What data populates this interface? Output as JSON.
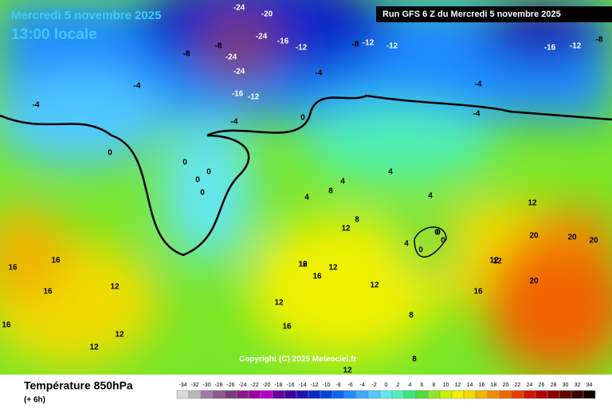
{
  "header": {
    "date": "Mercredi 5 novembre 2025",
    "time": "13:00 locale",
    "run": "Run GFS 6 Z du Mercredi 5 novembre 2025"
  },
  "footer": {
    "title": "Température 850hPa",
    "subtitle": "(+ 6h)",
    "copyright": "Copyright (C) 2025 Meteociel.fr"
  },
  "legend": {
    "ticks": [
      -34,
      -32,
      -30,
      -28,
      -26,
      -24,
      -22,
      -20,
      -18,
      -16,
      -14,
      -12,
      -10,
      -8,
      -6,
      -4,
      -2,
      0,
      2,
      4,
      6,
      8,
      10,
      12,
      14,
      16,
      18,
      20,
      22,
      24,
      26,
      28,
      30,
      32,
      34
    ],
    "colors": [
      "#d8d8d8",
      "#b8b8b8",
      "#a07ca0",
      "#8c5a8c",
      "#7a3a7a",
      "#8a1a8a",
      "#a000a0",
      "#b400c8",
      "#6400a0",
      "#3c00a0",
      "#1e14b4",
      "#0a28c8",
      "#0046dc",
      "#0a64f0",
      "#1e8cff",
      "#3caaff",
      "#50c8ff",
      "#64e6f0",
      "#50f0b4",
      "#3ce678",
      "#50dc3c",
      "#8ce628",
      "#c8f000",
      "#f0f000",
      "#f0dc00",
      "#f0b400",
      "#f08c00",
      "#f06400",
      "#e63c00",
      "#d21400",
      "#b40000",
      "#8c0000",
      "#640000",
      "#3c0000",
      "#140000"
    ]
  },
  "map_labels": [
    -24,
    -20,
    -24,
    -16,
    -12,
    -24,
    -24,
    -16,
    -12,
    -8,
    -8,
    -12,
    -12,
    -8,
    -16,
    -12,
    -8,
    -4,
    -4,
    -4,
    -4,
    -4,
    -4,
    0,
    0,
    0,
    0,
    0,
    0,
    0,
    0,
    4,
    4,
    4,
    8,
    8,
    12,
    12,
    12,
    16,
    16,
    16,
    12,
    12,
    12,
    16,
    16,
    12,
    12,
    20,
    20,
    20,
    20,
    16,
    12,
    8,
    12,
    4,
    0,
    0,
    4,
    12,
    16,
    12,
    16,
    8
  ]
}
